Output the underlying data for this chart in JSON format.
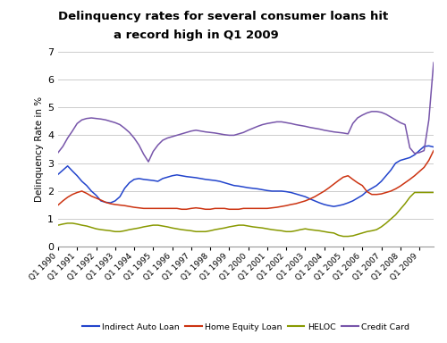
{
  "title_line1": "Delinquency rates for several consumer loans hit",
  "title_line2_normal": "a record high in ",
  "title_line2_bold": "Q1 2009",
  "ylabel": "Delinquency Rate in %",
  "ylim": [
    0,
    7
  ],
  "yticks": [
    0,
    1,
    2,
    3,
    4,
    5,
    6,
    7
  ],
  "series": {
    "Indirect Auto Loan": {
      "color": "#2244cc",
      "values": [
        2.6,
        2.75,
        2.9,
        2.72,
        2.55,
        2.35,
        2.2,
        2.0,
        1.85,
        1.65,
        1.6,
        1.58,
        1.65,
        1.8,
        2.1,
        2.3,
        2.42,
        2.45,
        2.42,
        2.4,
        2.38,
        2.35,
        2.45,
        2.5,
        2.55,
        2.58,
        2.55,
        2.52,
        2.5,
        2.48,
        2.45,
        2.42,
        2.4,
        2.38,
        2.35,
        2.3,
        2.25,
        2.2,
        2.18,
        2.15,
        2.12,
        2.1,
        2.08,
        2.05,
        2.02,
        2.0,
        2.0,
        2.0,
        1.98,
        1.95,
        1.9,
        1.85,
        1.8,
        1.72,
        1.65,
        1.58,
        1.52,
        1.48,
        1.45,
        1.48,
        1.52,
        1.58,
        1.65,
        1.75,
        1.85,
        2.0,
        2.1,
        2.2,
        2.35,
        2.55,
        2.75,
        3.0,
        3.1,
        3.15,
        3.2,
        3.3,
        3.45,
        3.6,
        3.62,
        3.58
      ]
    },
    "Home Equity Loan": {
      "color": "#cc3311",
      "values": [
        1.5,
        1.65,
        1.78,
        1.88,
        1.95,
        2.0,
        1.92,
        1.82,
        1.75,
        1.68,
        1.6,
        1.55,
        1.52,
        1.5,
        1.48,
        1.45,
        1.42,
        1.4,
        1.38,
        1.38,
        1.38,
        1.38,
        1.38,
        1.38,
        1.38,
        1.38,
        1.35,
        1.35,
        1.38,
        1.4,
        1.38,
        1.35,
        1.35,
        1.38,
        1.38,
        1.38,
        1.35,
        1.35,
        1.35,
        1.38,
        1.38,
        1.38,
        1.38,
        1.38,
        1.38,
        1.4,
        1.42,
        1.45,
        1.48,
        1.52,
        1.55,
        1.6,
        1.65,
        1.72,
        1.8,
        1.9,
        2.0,
        2.12,
        2.25,
        2.38,
        2.5,
        2.55,
        2.42,
        2.3,
        2.2,
        1.98,
        1.88,
        1.88,
        1.9,
        1.95,
        2.0,
        2.08,
        2.18,
        2.3,
        2.42,
        2.55,
        2.7,
        2.85,
        3.1,
        3.45
      ]
    },
    "HELOC": {
      "color": "#889900",
      "values": [
        0.78,
        0.82,
        0.85,
        0.85,
        0.82,
        0.78,
        0.75,
        0.7,
        0.65,
        0.62,
        0.6,
        0.58,
        0.55,
        0.55,
        0.58,
        0.62,
        0.65,
        0.68,
        0.72,
        0.75,
        0.78,
        0.78,
        0.75,
        0.72,
        0.68,
        0.65,
        0.62,
        0.6,
        0.58,
        0.55,
        0.55,
        0.55,
        0.58,
        0.62,
        0.65,
        0.68,
        0.72,
        0.75,
        0.78,
        0.78,
        0.75,
        0.72,
        0.7,
        0.68,
        0.65,
        0.62,
        0.6,
        0.58,
        0.55,
        0.55,
        0.58,
        0.62,
        0.65,
        0.62,
        0.6,
        0.58,
        0.55,
        0.52,
        0.5,
        0.42,
        0.38,
        0.38,
        0.4,
        0.45,
        0.5,
        0.55,
        0.58,
        0.62,
        0.72,
        0.85,
        1.0,
        1.15,
        1.35,
        1.55,
        1.78,
        1.95,
        1.95,
        1.95,
        1.95,
        1.95
      ]
    },
    "Credit Card": {
      "color": "#7755aa",
      "values": [
        3.38,
        3.6,
        3.9,
        4.15,
        4.42,
        4.55,
        4.6,
        4.62,
        4.6,
        4.58,
        4.55,
        4.5,
        4.45,
        4.38,
        4.25,
        4.1,
        3.9,
        3.65,
        3.32,
        3.05,
        3.42,
        3.65,
        3.82,
        3.9,
        3.95,
        4.0,
        4.05,
        4.1,
        4.15,
        4.18,
        4.15,
        4.12,
        4.1,
        4.08,
        4.05,
        4.02,
        4.0,
        4.0,
        4.05,
        4.1,
        4.18,
        4.25,
        4.32,
        4.38,
        4.42,
        4.45,
        4.48,
        4.48,
        4.45,
        4.42,
        4.38,
        4.35,
        4.32,
        4.28,
        4.25,
        4.22,
        4.18,
        4.15,
        4.12,
        4.1,
        4.08,
        4.05,
        4.42,
        4.62,
        4.72,
        4.8,
        4.85,
        4.85,
        4.82,
        4.75,
        4.65,
        4.55,
        4.45,
        4.38,
        3.55,
        3.35,
        3.38,
        3.45,
        4.55,
        6.6
      ]
    }
  },
  "legend_labels": [
    "Indirect Auto Loan",
    "Home Equity Loan",
    "HELOC",
    "Credit Card"
  ],
  "legend_colors": [
    "#2244cc",
    "#cc3311",
    "#889900",
    "#7755aa"
  ],
  "background_color": "#ffffff",
  "grid_color": "#cccccc",
  "n_points": 80,
  "start_year": 1990
}
